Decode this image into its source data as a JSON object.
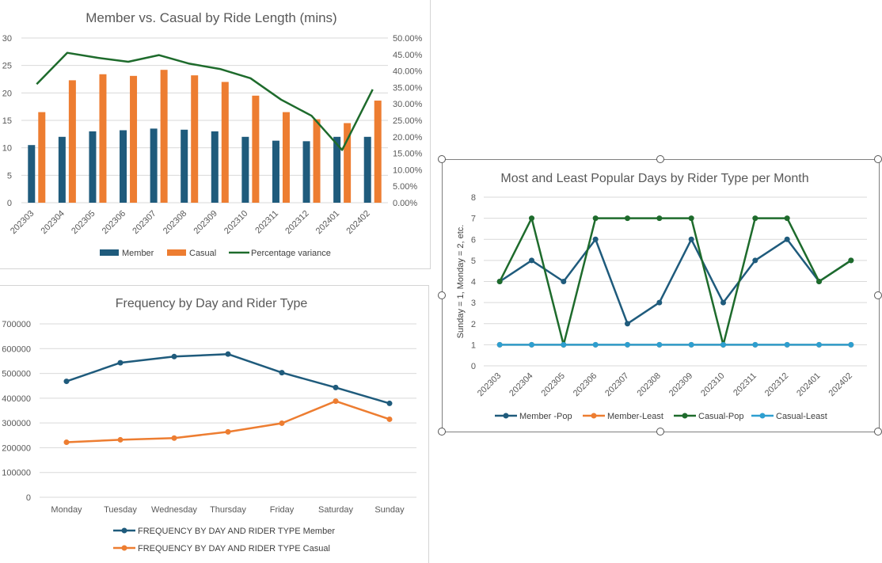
{
  "chart_data": [
    {
      "type": "bar",
      "title": "Member vs. Casual by Ride Length (mins)",
      "categories": [
        "202303",
        "202304",
        "202305",
        "202306",
        "202307",
        "202308",
        "202309",
        "202310",
        "202311",
        "202312",
        "202401",
        "202402"
      ],
      "series": [
        {
          "name": "Member",
          "type": "bar",
          "axis": "left",
          "color": "#1f5b7c",
          "values": [
            10.5,
            12.0,
            13.0,
            13.2,
            13.5,
            13.3,
            13.0,
            12.0,
            11.3,
            11.2,
            12.0,
            12.0
          ]
        },
        {
          "name": "Casual",
          "type": "bar",
          "axis": "left",
          "color": "#ed7d31",
          "values": [
            16.5,
            22.3,
            23.4,
            23.1,
            24.2,
            23.2,
            22.0,
            19.5,
            16.5,
            15.2,
            14.5,
            18.6
          ]
        },
        {
          "name": "Percentage variance",
          "type": "line",
          "axis": "right",
          "color": "#1e6b2c",
          "values": [
            36.0,
            45.5,
            44.0,
            42.8,
            44.8,
            42.2,
            40.6,
            37.8,
            31.3,
            26.4,
            16.0,
            34.4
          ]
        }
      ],
      "y_left": {
        "min": 0,
        "max": 30,
        "ticks": [
          "0",
          "5",
          "10",
          "15",
          "20",
          "25",
          "30"
        ]
      },
      "y_right": {
        "min": 0,
        "max": 50,
        "ticks": [
          "0.00%",
          "5.00%",
          "10.00%",
          "15.00%",
          "20.00%",
          "25.00%",
          "30.00%",
          "35.00%",
          "40.00%",
          "45.00%",
          "50.00%"
        ]
      },
      "grid": true,
      "legend": "bottom"
    },
    {
      "type": "line",
      "title": "Most and Least Popular Days by Rider Type per Month",
      "ylabel": "Sunday = 1, Monday = 2, etc.",
      "categories": [
        "202303",
        "202304",
        "202305",
        "202306",
        "202307",
        "202308",
        "202309",
        "202310",
        "202311",
        "202312",
        "202401",
        "202402"
      ],
      "ylim": [
        0,
        8
      ],
      "y_ticks": [
        "0",
        "1",
        "2",
        "3",
        "4",
        "5",
        "6",
        "7",
        "8"
      ],
      "series": [
        {
          "name": "Member -Pop",
          "color": "#1f5b7c",
          "values": [
            4,
            5,
            4,
            6,
            2,
            3,
            6,
            3,
            5,
            6,
            4,
            5
          ]
        },
        {
          "name": "Member-Least",
          "color": "#ed7d31",
          "values": [
            1,
            1,
            1,
            1,
            1,
            1,
            1,
            1,
            1,
            1,
            1,
            1
          ]
        },
        {
          "name": "Casual-Pop",
          "color": "#1e6b2c",
          "values": [
            4,
            7,
            1,
            7,
            7,
            7,
            7,
            1,
            7,
            7,
            4,
            5
          ]
        },
        {
          "name": "Casual-Least",
          "color": "#2e9fd0",
          "values": [
            1,
            1,
            1,
            1,
            1,
            1,
            1,
            1,
            1,
            1,
            1,
            1
          ]
        }
      ],
      "grid": true,
      "legend": "bottom"
    },
    {
      "type": "line",
      "title": "Frequency by Day and Rider Type",
      "categories": [
        "Monday",
        "Tuesday",
        "Wednesday",
        "Thursday",
        "Friday",
        "Saturday",
        "Sunday"
      ],
      "ylim": [
        0,
        700000
      ],
      "y_ticks": [
        "0",
        "100000",
        "200000",
        "300000",
        "400000",
        "500000",
        "600000",
        "700000"
      ],
      "series": [
        {
          "name": "FREQUENCY BY DAY AND RIDER TYPE Member",
          "color": "#1f5b7c",
          "values": [
            468000,
            543000,
            568000,
            578000,
            503000,
            443000,
            379000
          ]
        },
        {
          "name": "FREQUENCY BY DAY AND RIDER TYPE Casual",
          "color": "#ed7d31",
          "values": [
            222000,
            232000,
            239000,
            264000,
            299000,
            388000,
            315000
          ]
        }
      ],
      "grid": true,
      "legend": "bottom"
    }
  ]
}
